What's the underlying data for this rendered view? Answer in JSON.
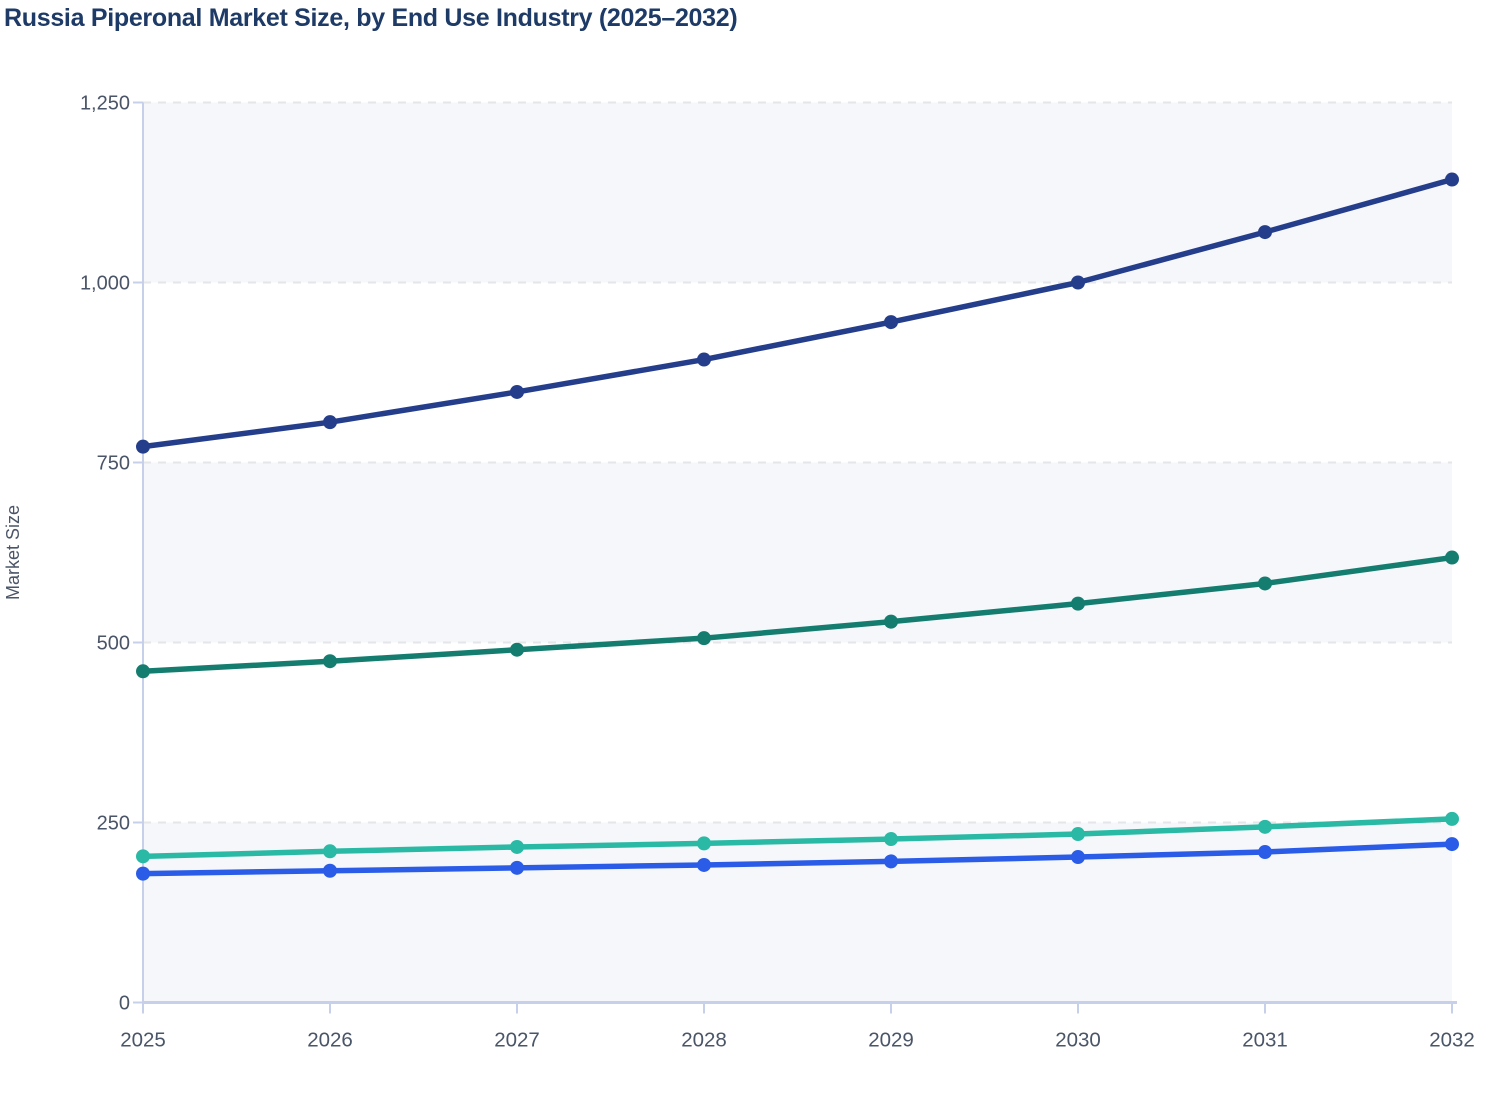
{
  "title": "Russia Piperonal Market Size, by End Use Industry (2025–2032)",
  "chart_data": {
    "type": "line",
    "title": "Russia Piperonal Market Size, by End Use Industry (2025–2032)",
    "xlabel": "",
    "ylabel": "Market Size",
    "x_labels": [
      "2025",
      "2026",
      "2027",
      "2028",
      "2029",
      "2030",
      "2031",
      "2032"
    ],
    "y_ticks": [
      {
        "value": 0,
        "label": "0"
      },
      {
        "value": 250,
        "label": "250"
      },
      {
        "value": 500,
        "label": "500"
      },
      {
        "value": 750,
        "label": "750"
      },
      {
        "value": 1000,
        "label": "1,000"
      },
      {
        "value": 1250,
        "label": "1,250"
      }
    ],
    "ylim": [
      0,
      1250
    ],
    "grid": {
      "horizontal_dashed": true,
      "vertical": false
    },
    "legend": "none",
    "series": [
      {
        "id": "navy-series",
        "color": "#253e8c",
        "values": [
          772,
          806,
          848,
          893,
          945,
          1000,
          1070,
          1143
        ]
      },
      {
        "id": "teal-series",
        "color": "#157d6f",
        "values": [
          460,
          474,
          490,
          506,
          529,
          554,
          582,
          618
        ]
      },
      {
        "id": "mint-series",
        "color": "#2ab9a4",
        "values": [
          203,
          210,
          216,
          221,
          227,
          234,
          244,
          255
        ]
      },
      {
        "id": "blue-series",
        "color": "#2a5ce8",
        "values": [
          179,
          183,
          187,
          191,
          196,
          202,
          209,
          220
        ]
      }
    ]
  },
  "styles": {
    "title_color": "#1e3a66",
    "tick_label_color": "#4a5568",
    "axis_line_color": "#c7d0ea",
    "grid_line_color": "#e4e6ea",
    "band_fill_color": "#f5f7fa",
    "background_color": "#ffffff"
  }
}
